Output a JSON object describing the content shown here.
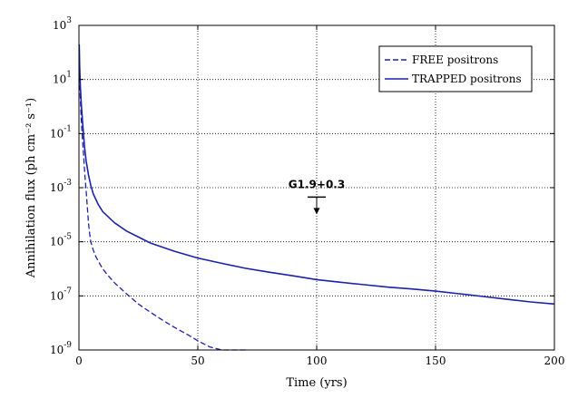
{
  "chart_data": {
    "type": "line",
    "xlabel": "Time (yrs)",
    "ylabel": "Annihilation flux (ph cm⁻² s⁻¹)",
    "xlim": [
      0,
      200
    ],
    "ylim": [
      1e-09,
      1000
    ],
    "yscale": "log",
    "grid": true,
    "legend_position": "top-right",
    "x_ticks": [
      {
        "value": 0,
        "label": "0"
      },
      {
        "value": 50,
        "label": "50"
      },
      {
        "value": 100,
        "label": "100"
      },
      {
        "value": 150,
        "label": "150"
      },
      {
        "value": 200,
        "label": "200"
      }
    ],
    "y_ticks": [
      {
        "value": 1e-09,
        "base": "10",
        "exp": "-9"
      },
      {
        "value": 1e-07,
        "base": "10",
        "exp": "-7"
      },
      {
        "value": 1e-05,
        "base": "10",
        "exp": "-5"
      },
      {
        "value": 0.001,
        "base": "10",
        "exp": "-3"
      },
      {
        "value": 0.1,
        "base": "10",
        "exp": "-1"
      },
      {
        "value": 10,
        "base": "10",
        "exp": "1"
      },
      {
        "value": 1000,
        "base": "10",
        "exp": "3"
      }
    ],
    "series": [
      {
        "name": "FREE positrons",
        "style": "dashed",
        "color": "#1c22a8",
        "x": [
          0.1,
          0.5,
          1,
          1.5,
          2,
          2.5,
          3,
          3.5,
          4,
          4.5,
          5,
          6,
          7,
          8,
          10,
          12,
          15,
          20,
          25,
          30,
          35,
          40,
          45,
          50,
          55,
          60,
          65,
          71
        ],
        "y": [
          50,
          3,
          0.3,
          0.06,
          0.015,
          0.003,
          0.0008,
          0.0002,
          5e-05,
          2e-05,
          1e-05,
          5e-06,
          3e-06,
          2e-06,
          1e-06,
          6e-07,
          3e-07,
          1.2e-07,
          5e-08,
          2.5e-08,
          1.3e-08,
          7e-09,
          4e-09,
          2.2e-09,
          1.3e-09,
          8e-10,
          5e-10,
          3e-10
        ]
      },
      {
        "name": "TRAPPED positrons",
        "style": "solid",
        "color": "#1c22a8",
        "x": [
          0.1,
          0.3,
          0.6,
          1,
          1.5,
          2,
          2.5,
          3,
          4,
          5,
          6,
          8,
          10,
          15,
          20,
          25,
          30,
          40,
          50,
          60,
          70,
          80,
          90,
          100,
          110,
          120,
          130,
          140,
          150,
          160,
          170,
          180,
          190,
          200
        ],
        "y": [
          200,
          30,
          5,
          1.2,
          0.3,
          0.08,
          0.025,
          0.01,
          0.003,
          0.0012,
          0.0006,
          0.00025,
          0.00013,
          5e-05,
          2.5e-05,
          1.5e-05,
          9e-06,
          4.5e-06,
          2.5e-06,
          1.6e-06,
          1.05e-06,
          7.5e-07,
          5.5e-07,
          4e-07,
          3.2e-07,
          2.6e-07,
          2.1e-07,
          1.8e-07,
          1.5e-07,
          1.2e-07,
          9.5e-08,
          7.5e-08,
          6e-08,
          5e-08
        ]
      }
    ],
    "annotation": {
      "label": "G1.9+0.3",
      "type": "upper-limit",
      "x": 100,
      "y": 0.00045
    }
  }
}
